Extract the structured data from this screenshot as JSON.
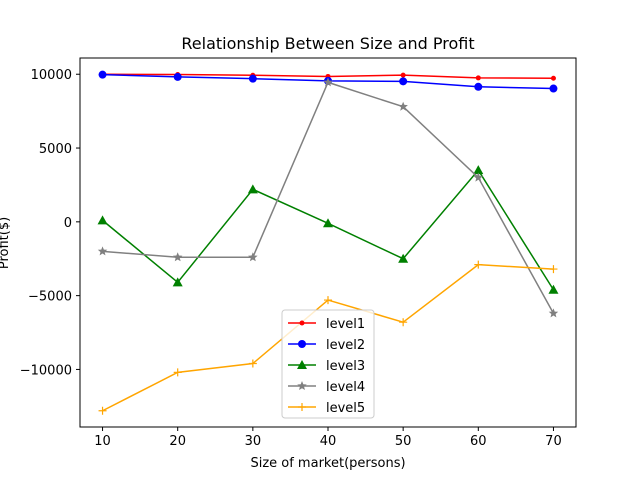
{
  "chart_data": {
    "type": "line",
    "title": "Relationship Between Size and Profit",
    "xlabel": "Size of market(persons)",
    "ylabel": "Profit($)",
    "x": [
      10,
      20,
      30,
      40,
      50,
      60,
      70
    ],
    "xlim": [
      7,
      73
    ],
    "ylim": [
      -13900,
      11100
    ],
    "xticks": [
      10,
      20,
      30,
      40,
      50,
      60,
      70
    ],
    "yticks": [
      -10000,
      -5000,
      0,
      5000,
      10000
    ],
    "grid": false,
    "legend_position": "lower center",
    "series": [
      {
        "name": "level1",
        "color": "#ff0000",
        "marker": "point",
        "values": [
          10000,
          9980,
          9930,
          9850,
          9940,
          9750,
          9730
        ]
      },
      {
        "name": "level2",
        "color": "#0000ff",
        "marker": "circle",
        "values": [
          9970,
          9820,
          9700,
          9550,
          9520,
          9150,
          9030
        ]
      },
      {
        "name": "level3",
        "color": "#008000",
        "marker": "triangle",
        "values": [
          100,
          -4100,
          2200,
          -100,
          -2500,
          3500,
          -4600
        ]
      },
      {
        "name": "level4",
        "color": "#808080",
        "marker": "star",
        "values": [
          -2000,
          -2400,
          -2400,
          9450,
          7800,
          3000,
          -6200
        ]
      },
      {
        "name": "level5",
        "color": "#ffa500",
        "marker": "plus",
        "values": [
          -12800,
          -10200,
          -9600,
          -5300,
          -6800,
          -2900,
          -3200
        ]
      }
    ]
  }
}
